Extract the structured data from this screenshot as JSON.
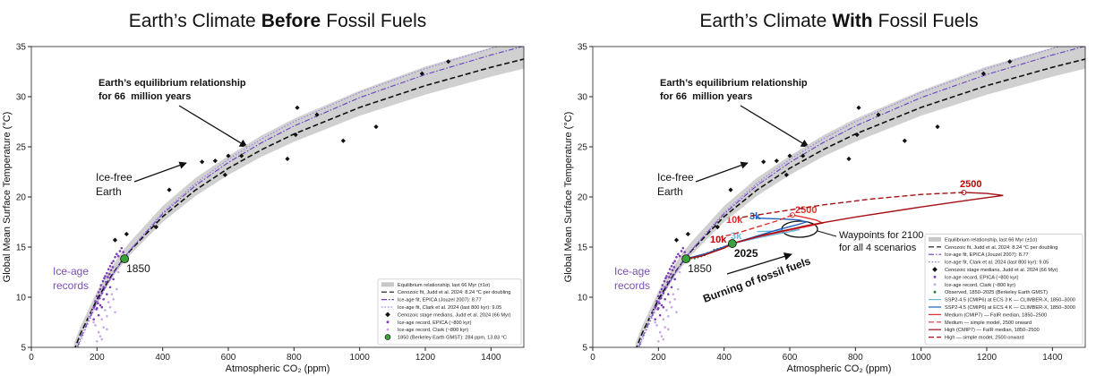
{
  "chart_data": [
    {
      "type": "scatter",
      "title": [
        "Earth’s Climate",
        "Before",
        "Fossil Fuels"
      ],
      "x_label": "Atmospheric CO₂ (ppm)",
      "y_label": "Global Mean Surface Temperature (°C)",
      "xlim": [
        0,
        1500
      ],
      "ylim": [
        5,
        35
      ],
      "xticks": [
        0,
        200,
        400,
        600,
        800,
        1000,
        1200,
        1400
      ],
      "yticks": [
        5,
        10,
        15,
        20,
        25,
        30,
        35
      ],
      "legend": "lower right",
      "annotations": [
        "Earth’s equilibrium relationship",
        "for 66  million years",
        "Ice-free",
        "Earth",
        "Ice-age",
        "records"
      ],
      "x": [
        130,
        150,
        200,
        250,
        280,
        300,
        400,
        500,
        600,
        700,
        800,
        1000,
        1200,
        1400,
        1500
      ],
      "band": {
        "name": "Equilibrium relationship, last 66 Myr (±1σ)",
        "color": "#c8c8c8",
        "lower": [
          4.4,
          6.1,
          9.5,
          12.1,
          13.4,
          14.2,
          17.5,
          20.1,
          22.2,
          24.0,
          25.5,
          28.1,
          30.2,
          32.0,
          32.8
        ],
        "upper": [
          5.4,
          7.1,
          10.6,
          13.3,
          14.7,
          15.5,
          19.1,
          21.9,
          24.1,
          26.1,
          27.8,
          30.6,
          33.0,
          34.9,
          35.8
        ]
      },
      "series": [
        {
          "name": "Cenozoic fit, Judd et al. 2024: 8.24 °C per doubling",
          "color": "#111111",
          "dash": "dashed",
          "values": [
            4.68,
            6.38,
            9.8,
            12.45,
            13.8,
            14.62,
            18.04,
            20.69,
            22.86,
            24.69,
            26.28,
            28.93,
            31.1,
            32.93,
            33.75
          ]
        },
        {
          "name": "Ice-age fit, EPICA (Jouzel 2007): 8.77",
          "color": "#6a3fc0",
          "dash": "dashdot",
          "values": [
            4.09,
            5.91,
            9.55,
            12.37,
            13.8,
            14.67,
            18.31,
            21.14,
            23.44,
            25.39,
            27.08,
            29.91,
            32.21,
            34.16,
            35.04
          ]
        },
        {
          "name": "Ice-age fit, Clark et al. 2024 (last 800 kyr): 9.05",
          "color": "#9b7be0",
          "dash": "dotted",
          "values": [
            3.78,
            5.66,
            9.41,
            12.32,
            13.8,
            14.7,
            18.46,
            21.37,
            23.75,
            25.76,
            27.51,
            30.42,
            32.8,
            34.81,
            35.71
          ]
        }
      ],
      "scatter": [
        {
          "name": "Cenozoic stage medians, Judd et al. 2024 (66 Myr)",
          "color": "#111111",
          "marker": "diamond",
          "x": [
            255,
            290,
            380,
            420,
            520,
            560,
            590,
            600,
            640,
            780,
            805,
            810,
            870,
            950,
            1050,
            1190,
            1270
          ],
          "values": [
            15.7,
            16.3,
            17.0,
            20.7,
            23.5,
            23.6,
            22.2,
            24.1,
            24.1,
            23.8,
            26.2,
            28.9,
            28.2,
            25.6,
            27.0,
            32.3,
            33.5
          ]
        },
        {
          "name": "Ice-age record, EPICA (~800 kyr)",
          "color": "#7b3fb5",
          "marker": "dot",
          "x": [
            185,
            190,
            195,
            198,
            200,
            203,
            205,
            208,
            210,
            212,
            215,
            218,
            220,
            222,
            225,
            228,
            230,
            233,
            235,
            238,
            240,
            243,
            245,
            248,
            250,
            255,
            260,
            265,
            270,
            275,
            280,
            200,
            210,
            220,
            230,
            240,
            250,
            190,
            205,
            215
          ],
          "values": [
            8.5,
            9.0,
            9.6,
            8.8,
            10.1,
            9.4,
            10.5,
            9.9,
            10.8,
            11.2,
            10.4,
            11.6,
            11.0,
            11.9,
            12.1,
            11.5,
            12.4,
            12.0,
            12.8,
            12.3,
            13.1,
            12.7,
            13.4,
            13.0,
            13.6,
            14.0,
            14.3,
            14.1,
            14.6,
            14.9,
            14.5,
            8.9,
            9.2,
            9.8,
            10.3,
            11.0,
            11.8,
            7.8,
            8.2,
            9.0
          ]
        },
        {
          "name": "Ice-age record, Clark (~800 kyr)",
          "color": "#c9a8e8",
          "marker": "dot",
          "x": [
            175,
            185,
            195,
            205,
            215,
            225,
            235,
            245,
            200,
            210,
            220,
            230,
            240,
            250,
            260,
            190,
            215,
            230,
            255,
            265
          ],
          "values": [
            8.0,
            8.6,
            7.2,
            6.5,
            7.8,
            8.7,
            9.5,
            10.3,
            5.6,
            6.1,
            7.0,
            8.1,
            9.0,
            9.8,
            10.8,
            7.5,
            5.8,
            6.8,
            8.5,
            12.5
          ]
        }
      ],
      "highlights": [
        {
          "name": "1850 (Berkeley Earth GMST): 284 ppm, 13.83 °C",
          "label": "1850",
          "color": "#3aa23a",
          "x": 284,
          "value": 13.83
        }
      ]
    },
    {
      "type": "scatter",
      "title": [
        "Earth’s Climate",
        "With",
        "Fossil Fuels"
      ],
      "x_label": "Atmospheric CO₂ (ppm)",
      "y_label": "Global Mean Surface Temperature (°C)",
      "xlim": [
        0,
        1500
      ],
      "ylim": [
        5,
        35
      ],
      "xticks": [
        0,
        200,
        400,
        600,
        800,
        1000,
        1200,
        1400
      ],
      "yticks": [
        5,
        10,
        15,
        20,
        25,
        30,
        35
      ],
      "legend": "lower right",
      "annotations": [
        "Earth’s equilibrium relationship",
        "for 66  million years",
        "Ice-free",
        "Earth",
        "Ice-age",
        "records",
        "Burning of fossil fuels",
        "Waypoints for 2100",
        "for all 4 scenarios",
        "2500",
        "2500",
        "10k",
        "3k",
        "10k",
        "3k"
      ],
      "x": [
        130,
        150,
        200,
        250,
        280,
        300,
        400,
        500,
        600,
        700,
        800,
        1000,
        1200,
        1400,
        1500
      ],
      "band": {
        "name": "Equilibrium relationship, last 66 Myr (±1σ)",
        "color": "#c8c8c8",
        "lower": [
          4.4,
          6.1,
          9.5,
          12.1,
          13.4,
          14.2,
          17.5,
          20.1,
          22.2,
          24.0,
          25.5,
          28.1,
          30.2,
          32.0,
          32.8
        ],
        "upper": [
          5.4,
          7.1,
          10.6,
          13.3,
          14.7,
          15.5,
          19.1,
          21.9,
          24.1,
          26.1,
          27.8,
          30.6,
          33.0,
          34.9,
          35.8
        ]
      },
      "series": [
        {
          "name": "Cenozoic fit, Judd et al. 2024: 8.24 °C per doubling",
          "color": "#111111",
          "dash": "dashed",
          "values": [
            4.68,
            6.38,
            9.8,
            12.45,
            13.8,
            14.62,
            18.04,
            20.69,
            22.86,
            24.69,
            26.28,
            28.93,
            31.1,
            32.93,
            33.75
          ]
        },
        {
          "name": "Ice-age fit, EPICA (Jouzel 2007): 8.77",
          "color": "#6a3fc0",
          "dash": "dashdot",
          "values": [
            4.09,
            5.91,
            9.55,
            12.37,
            13.8,
            14.67,
            18.31,
            21.14,
            23.44,
            25.39,
            27.08,
            29.91,
            32.21,
            34.16,
            35.04
          ]
        },
        {
          "name": "Ice-age fit, Clark et al. 2024 (last 800 kyr): 9.05",
          "color": "#9b7be0",
          "dash": "dotted",
          "values": [
            3.78,
            5.66,
            9.41,
            12.32,
            13.8,
            14.7,
            18.46,
            21.37,
            23.75,
            25.76,
            27.51,
            30.42,
            32.8,
            34.81,
            35.71
          ]
        }
      ],
      "scatter": [
        {
          "name": "Cenozoic stage medians, Judd et al. 2024 (66 Myr)",
          "color": "#111111",
          "marker": "diamond",
          "x": [
            255,
            290,
            380,
            420,
            520,
            560,
            590,
            600,
            640,
            780,
            805,
            810,
            870,
            950,
            1050,
            1190,
            1270
          ],
          "values": [
            15.7,
            16.3,
            17.0,
            20.7,
            23.5,
            23.6,
            22.2,
            24.1,
            24.1,
            23.8,
            26.2,
            28.9,
            28.2,
            25.6,
            27.0,
            32.3,
            33.5
          ]
        },
        {
          "name": "Ice-age record, EPICA (~800 kyr)",
          "color": "#7b3fb5",
          "marker": "dot",
          "x": [
            185,
            190,
            195,
            198,
            200,
            203,
            205,
            208,
            210,
            212,
            215,
            218,
            220,
            222,
            225,
            228,
            230,
            233,
            235,
            238,
            240,
            243,
            245,
            248,
            250,
            255,
            260,
            265,
            270,
            275,
            280,
            200,
            210,
            220,
            230,
            240,
            250,
            190,
            205,
            215
          ],
          "values": [
            8.5,
            9.0,
            9.6,
            8.8,
            10.1,
            9.4,
            10.5,
            9.9,
            10.8,
            11.2,
            10.4,
            11.6,
            11.0,
            11.9,
            12.1,
            11.5,
            12.4,
            12.0,
            12.8,
            12.3,
            13.1,
            12.7,
            13.4,
            13.0,
            13.6,
            14.0,
            14.3,
            14.1,
            14.6,
            14.9,
            14.5,
            8.9,
            9.2,
            9.8,
            10.3,
            11.0,
            11.8,
            7.8,
            8.2,
            9.0
          ]
        },
        {
          "name": "Ice-age record, Clark (~800 kyr)",
          "color": "#c9a8e8",
          "marker": "dot",
          "x": [
            175,
            185,
            195,
            205,
            215,
            225,
            235,
            245,
            200,
            210,
            220,
            230,
            240,
            250,
            260,
            190,
            215,
            230,
            255,
            265
          ],
          "values": [
            8.0,
            8.6,
            7.2,
            6.5,
            7.8,
            8.7,
            9.5,
            10.3,
            5.6,
            6.1,
            7.0,
            8.1,
            9.0,
            9.8,
            10.8,
            7.5,
            5.8,
            6.8,
            8.5,
            12.5
          ]
        },
        {
          "name": "Observed, 1850–2025 (Berkeley Earth GMST)",
          "color": "#2e7d32",
          "marker": "dot",
          "x": [
            284,
            290,
            300,
            310,
            320,
            330,
            340,
            350,
            360,
            370,
            380,
            390,
            400,
            410,
            420,
            425
          ],
          "values": [
            13.83,
            13.8,
            13.9,
            13.9,
            14.0,
            14.1,
            14.2,
            14.4,
            14.5,
            14.7,
            14.8,
            14.9,
            15.0,
            15.1,
            15.3,
            15.35
          ]
        }
      ],
      "scenarios": [
        {
          "name": "SSP2-4.5 (CMIP6) at ECS 3 K — CLIMBER-X, 1850–3000",
          "color": "#6ab8e6",
          "dash": "solid",
          "x": [
            284,
            350,
            425,
            500,
            560,
            610,
            630,
            600,
            550,
            500
          ],
          "values": [
            13.83,
            14.3,
            15.35,
            15.9,
            16.3,
            16.6,
            16.75,
            16.7,
            16.6,
            16.55
          ]
        },
        {
          "name": "SSP2-4.5 (CMIP6) at ECS 4 K — CLIMBER-X, 1850–3000",
          "color": "#1f5fbf",
          "dash": "solid",
          "x": [
            284,
            350,
            425,
            500,
            560,
            620,
            650,
            630,
            580,
            530,
            500
          ],
          "values": [
            13.83,
            14.4,
            15.35,
            16.1,
            16.7,
            17.2,
            17.5,
            17.7,
            17.8,
            17.85,
            17.9
          ]
        },
        {
          "name": "Medium (CMIP7) — FaIR median, 1850–2500",
          "color": "#e03030",
          "dash": "solid",
          "end_marker": true,
          "x": [
            284,
            330,
            400,
            425,
            500,
            600,
            660,
            700,
            680,
            640,
            608
          ],
          "values": [
            13.83,
            14.1,
            14.9,
            15.35,
            16.0,
            16.7,
            17.1,
            17.4,
            17.7,
            18.0,
            18.2
          ]
        },
        {
          "name": "Medium — simple model, 2500 onward",
          "color": "#e03030",
          "dash": "dashed",
          "x": [
            608,
            560,
            500,
            440,
            390
          ],
          "values": [
            18.2,
            17.6,
            17.0,
            16.4,
            16.0
          ]
        },
        {
          "name": "High (CMIP7) — FaIR median, 1850–2500",
          "color": "#a50f15",
          "dash": "solid",
          "end_marker": true,
          "x": [
            284,
            330,
            400,
            425,
            520,
            660,
            800,
            1000,
            1150,
            1250,
            1200,
            1130
          ],
          "values": [
            13.83,
            14.1,
            14.9,
            15.35,
            16.2,
            17.2,
            18.0,
            19.0,
            19.7,
            20.15,
            20.35,
            20.45
          ]
        },
        {
          "name": "High — simple model, 2500 onward",
          "color": "#a50f15",
          "dash": "dashed",
          "x": [
            1130,
            1000,
            850,
            700,
            600,
            500,
            440
          ],
          "values": [
            20.45,
            20.25,
            19.8,
            19.2,
            18.7,
            18.2,
            17.9
          ]
        }
      ],
      "highlights": [
        {
          "label": "1850",
          "color": "#3aa23a",
          "x": 284,
          "value": 13.83
        },
        {
          "label": "2025",
          "color": "#3aa23a",
          "x": 425,
          "value": 15.35
        }
      ]
    }
  ]
}
